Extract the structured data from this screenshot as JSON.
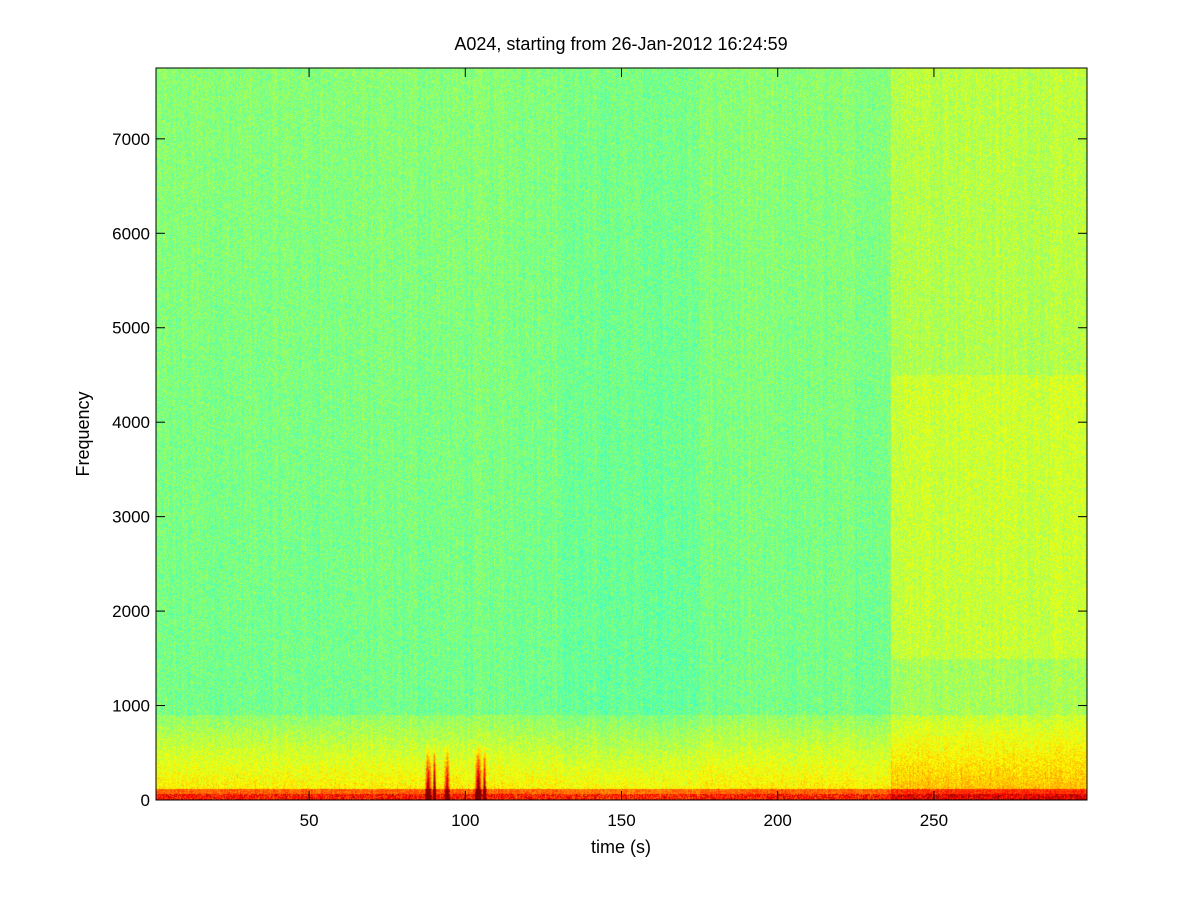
{
  "chart_data": {
    "type": "heatmap",
    "title": "A024, starting from 26-Jan-2012 16:24:59",
    "xlabel": "time (s)",
    "ylabel": "Frequency",
    "xlim": [
      1,
      299
    ],
    "ylim": [
      0,
      7750
    ],
    "xticks": [
      50,
      100,
      150,
      200,
      250
    ],
    "xtick_labels": [
      "50",
      "100",
      "150",
      "200",
      "250"
    ],
    "yticks": [
      0,
      1000,
      2000,
      3000,
      4000,
      5000,
      6000,
      7000
    ],
    "ytick_labels": [
      "0",
      "1000",
      "2000",
      "3000",
      "4000",
      "5000",
      "6000",
      "7000"
    ],
    "grid": false,
    "colormap": "jet",
    "colors": {
      "low": "#40e8c8",
      "mid": "#7df07a",
      "high": "#ffff10",
      "peak": "#d01000"
    }
  }
}
